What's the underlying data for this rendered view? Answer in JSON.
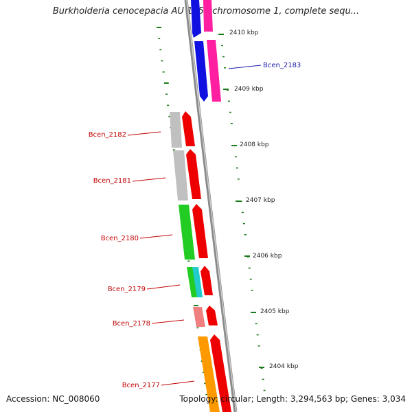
{
  "title": "Burkholderia cenocepacia AU 1054 chromosome 1, complete sequ...",
  "footer": {
    "accession": "Accession: NC_008060",
    "topology": "Topology: circular; Length: 3,294,563 bp; Genes: 3,034"
  },
  "colors": {
    "backbone": "#8a8a8a",
    "tick": "#1a7a1a",
    "label_blue": "#1a1aaa",
    "label_red": "#c00000",
    "kbp_text": "#222222"
  },
  "scale_labels": [
    "2410 kbp",
    "2409 kbp",
    "2408 kbp",
    "2407 kbp",
    "2406 kbp",
    "2405 kbp",
    "2404 kbp"
  ],
  "genes": [
    {
      "name": "Bcen_2183",
      "color": "blue"
    },
    {
      "name": "Bcen_2182",
      "color": "red"
    },
    {
      "name": "Bcen_2181",
      "color": "red"
    },
    {
      "name": "Bcen_2180",
      "color": "red"
    },
    {
      "name": "Bcen_2179",
      "color": "red"
    },
    {
      "name": "Bcen_2178",
      "color": "red"
    },
    {
      "name": "Bcen_2177",
      "color": "red"
    }
  ]
}
